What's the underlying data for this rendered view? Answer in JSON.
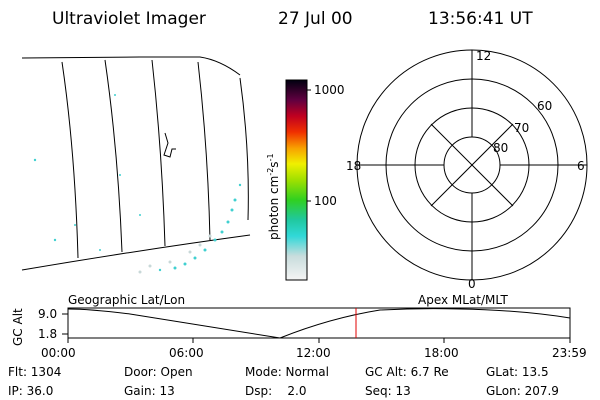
{
  "header": {
    "title": "Ultraviolet Imager",
    "date": "27 Jul 00",
    "time": "13:56:41 UT"
  },
  "colorbar": {
    "labels": [
      "1000",
      "100"
    ],
    "unit": "photon cm",
    "unit_exp1": "-2",
    "unit_mid": "s",
    "unit_exp2": "-1"
  },
  "polar": {
    "mlt_labels": [
      "12",
      "18",
      "6",
      "0"
    ],
    "lat_labels": [
      "60",
      "70",
      "80"
    ]
  },
  "altitude": {
    "axis_label": "GC Alt",
    "yticks": [
      "9.0",
      "1.8"
    ],
    "left_label": "Geographic Lat/Lon",
    "right_label": "Apex MLat/MLT",
    "xticks": [
      "00:00",
      "06:00",
      "12:00",
      "18:00",
      "23:59"
    ]
  },
  "info": {
    "rows": [
      [
        "Flt: 1304",
        "Door: Open",
        "Mode: Normal",
        "GC Alt: 6.7 Re",
        "GLat: 13.5"
      ],
      [
        "IP: 36.0",
        "Gain: 13",
        "Dsp:    2.0",
        "Seq: 13",
        "GLon: 207.9"
      ]
    ]
  }
}
